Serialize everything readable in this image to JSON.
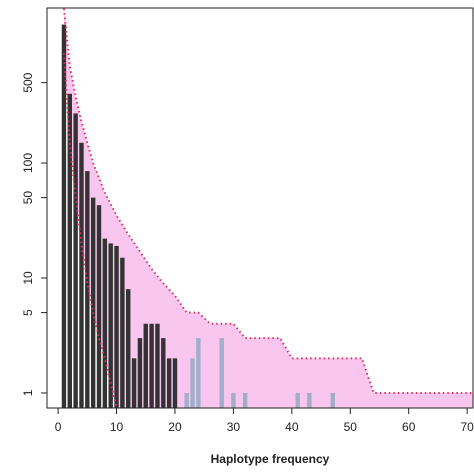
{
  "chart_data": {
    "type": "bar",
    "x_label": "Haplotype frequency",
    "xlim": [
      -1.9,
      71
    ],
    "xticks": [
      0,
      10,
      20,
      30,
      40,
      50,
      60,
      70
    ],
    "ylim": [
      0.74,
      2230
    ],
    "yticks": [
      1,
      5,
      10,
      50,
      100,
      500
    ],
    "ylog": true,
    "bars_dark": {
      "color": "#333333",
      "x": [
        1,
        2,
        3,
        4,
        5,
        6,
        7,
        8,
        9,
        10,
        11,
        12,
        13,
        14,
        15,
        16,
        17,
        18,
        19,
        20
      ],
      "values": [
        1600,
        400,
        270,
        150,
        85,
        50,
        43,
        22,
        20,
        19,
        15,
        8,
        2,
        3,
        4,
        4,
        4,
        3,
        2,
        2
      ]
    },
    "bars_light": {
      "color": "#a3aec8",
      "x": [
        22,
        23,
        24,
        28,
        30,
        32,
        41,
        43,
        47
      ],
      "values": [
        1,
        2,
        3,
        3,
        1,
        1,
        1,
        1,
        1
      ]
    },
    "band_color": "#f9c6ef",
    "bound_color": "#e0305a",
    "upper_bound": {
      "x": [
        1,
        2,
        3,
        4,
        5,
        6,
        8,
        10,
        12,
        14,
        16,
        18,
        20,
        22,
        24,
        26,
        30,
        32,
        38,
        40,
        52,
        54,
        72
      ],
      "values": [
        2200,
        700,
        380,
        230,
        150,
        100,
        55,
        35,
        24,
        17,
        12,
        9,
        7,
        5,
        5,
        4,
        4,
        3,
        3,
        2,
        2,
        1,
        1
      ]
    },
    "lower_bound": {
      "x": [
        1,
        2,
        3,
        4,
        5,
        6,
        7,
        8,
        9,
        10
      ],
      "values": [
        900,
        150,
        50,
        20,
        9,
        5,
        3,
        2,
        1.2,
        0.75
      ]
    }
  }
}
